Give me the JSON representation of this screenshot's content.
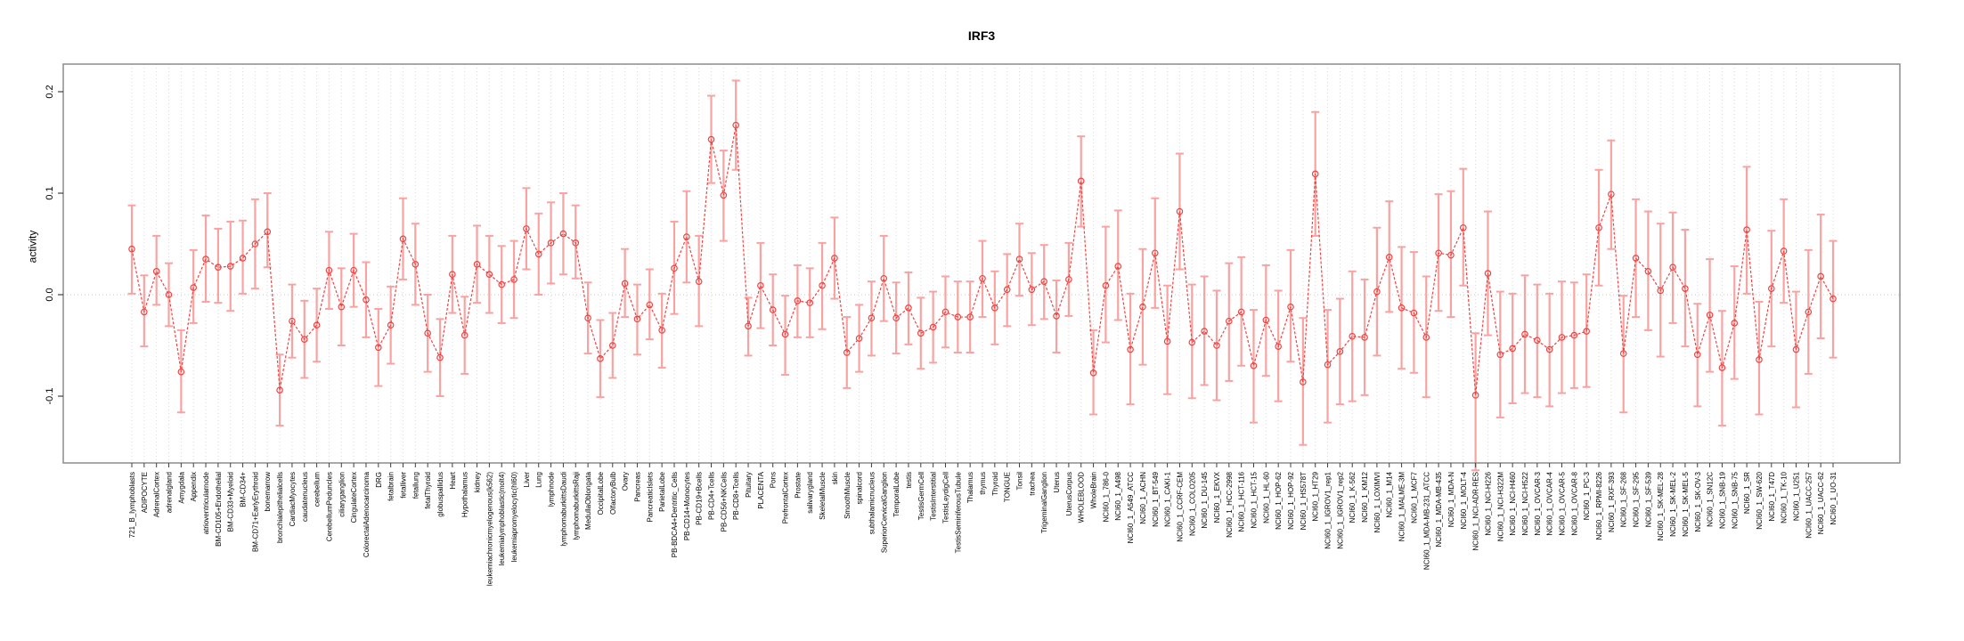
{
  "title": "IRF3",
  "chart_data": {
    "type": "line",
    "title": "IRF3",
    "xlabel": "",
    "ylabel": "activity",
    "ylim": [
      -0.166,
      0.227
    ],
    "yticks": [
      -0.1,
      0.0,
      0.1,
      0.2
    ],
    "ytick_labels": [
      "-0.1",
      "0.0",
      "0.1",
      "0.2"
    ],
    "grid": "vertical dotted per category, dotted zero line",
    "legend_position": "none",
    "point_style": "open-circle with error bars",
    "colors": {
      "point_line": "#f04341",
      "error_bar": "#f8a3a1",
      "grid_line": "#dadada",
      "zero_line": "#c8c8c8",
      "box_border": "#8c8c8c",
      "tick": "#404040",
      "text": "#000000",
      "background": "#ffffff"
    },
    "categories": [
      "721_B_lymphoblasts",
      "ADIPOCYTE",
      "AdrenalCortex",
      "adrenalgland",
      "Amygdala",
      "Appendix",
      "atrioventricularnode",
      "BM-CD105+Endothelial",
      "BM-CD33+Myeloid",
      "BM-CD34+",
      "BM-CD71+EarlyErythroid",
      "bonemarrow",
      "bronchialepithelialcells",
      "CardiacMyocytes",
      "caudatenucleus",
      "cerebellum",
      "CerebellumPeduncles",
      "ciliaryganglion",
      "CingulateCortex",
      "ColorectalAdenocarcinoma",
      "DRG",
      "fetalbrain",
      "fetalliver",
      "fetallung",
      "fetalThyroid",
      "globuspallidus",
      "Heart",
      "Hypothalamus",
      "kidney",
      "leukemiachronicmyelogenous(k562)",
      "leukemialymphoblastic(molt4)",
      "leukemiapromyelocytic(hl60)",
      "Liver",
      "Lung",
      "lymphnode",
      "lymphomaburkittsDaudi",
      "lymphomaburkittsRaji",
      "MedullaOblongata",
      "OccipitalLobe",
      "OlfactoryBulb",
      "Ovary",
      "Pancreas",
      "PancreaticIslets",
      "ParietalLobe",
      "PB-BDCA4+Dentritic_Cells",
      "PB-CD14+Monocytes",
      "PB-CD19+Bcells",
      "PB-CD4+Tcells",
      "PB-CD56+NKCells",
      "PB-CD8+Tcells",
      "Pituitary",
      "PLACENTA",
      "Pons",
      "PrefrontalCortex",
      "Prostate",
      "salivarygland",
      "SkeletalMuscle",
      "skin",
      "SmoothMuscle",
      "spinalcord",
      "subthalamicnucleus",
      "SuperiorCervicalGanglion",
      "TemporalLobe",
      "testis",
      "TestisGermCell",
      "TestisInterstitial",
      "TestisLeydigCell",
      "TestisSeminiferousTubule",
      "Thalamus",
      "thymus",
      "Thyroid",
      "TONGUE",
      "Tonsil",
      "trachea",
      "TrigeminalGanglion",
      "Uterus",
      "UterusCorpus",
      "WHOLEBLOOD",
      "WholeBrain",
      "NCI60_1_786-0",
      "NCI60_1_A498",
      "NCI60_1_A549_ATCC",
      "NCI60_1_ACHN",
      "NCI60_1_BT-549",
      "NCI60_1_CAKI-1",
      "NCI60_1_CCRF-CEM",
      "NCI60_1_COLO205",
      "NCI60_1_DU-145",
      "NCI60_1_EKVX",
      "NCI60_1_HCC-2998",
      "NCI60_1_HCT-116",
      "NCI60_1_HCT-15",
      "NCI60_1_HL-60",
      "NCI60_1_HOP-62",
      "NCI60_1_HOP-92",
      "NCI60_1_HS578T",
      "NCI60_1_HT29",
      "NCI60_1_IGROV1_rep1",
      "NCI60_1_IGROV1_rep2",
      "NCI60_1_K-562",
      "NCI60_1_KM12",
      "NCI60_1_LOXIMVI",
      "NCI60_1_M14",
      "NCI60_1_MALME-3M",
      "NCI60_1_MCF7",
      "NCI60_1_MDA-MB-231_ATCC",
      "NCI60_1_MDA-MB-435",
      "NCI60_1_MDA-N",
      "NCI60_1_MOLT-4",
      "NCI60_1_NCI-ADR-RES",
      "NCI60_1_NCI-H226",
      "NCI60_1_NCI-H322M",
      "NCI60_1_NCI-H460",
      "NCI60_1_NCI-H522",
      "NCI60_1_OVCAR-3",
      "NCI60_1_OVCAR-4",
      "NCI60_1_OVCAR-5",
      "NCI60_1_OVCAR-8",
      "NCI60_1_PC-3",
      "NCI60_1_RPMI-8226",
      "NCI60_1_RXF-393",
      "NCI60_1_SF-268",
      "NCI60_1_SF-295",
      "NCI60_1_SF-539",
      "NCI60_1_SK-MEL-28",
      "NCI60_1_SK-MEL-2",
      "NCI60_1_SK-MEL-5",
      "NCI60_1_SK-OV-3",
      "NCI60_1_SN12C",
      "NCI60_1_SNB-19",
      "NCI60_1_SNB-75",
      "NCI60_1_SR",
      "NCI60_1_SW-620",
      "NCI60_1_T47D",
      "NCI60_1_TK-10",
      "NCI60_1_U251",
      "NCI60_1_UACC-257",
      "NCI60_1_UACC-62",
      "NCI60_1_UO-31"
    ],
    "values": [
      0.045,
      -0.017,
      0.023,
      0.0,
      -0.076,
      0.007,
      0.035,
      0.027,
      0.028,
      0.036,
      0.05,
      0.062,
      -0.094,
      -0.026,
      -0.044,
      -0.03,
      0.024,
      -0.012,
      0.024,
      -0.005,
      -0.052,
      -0.03,
      0.055,
      0.03,
      -0.038,
      -0.062,
      0.02,
      -0.04,
      0.03,
      0.02,
      0.01,
      0.015,
      0.065,
      0.04,
      0.051,
      0.06,
      0.051,
      -0.023,
      -0.063,
      -0.05,
      0.011,
      -0.024,
      -0.01,
      -0.035,
      0.026,
      0.057,
      0.013,
      0.153,
      0.098,
      0.167,
      -0.031,
      0.009,
      -0.015,
      -0.039,
      -0.006,
      -0.008,
      0.009,
      0.036,
      -0.057,
      -0.043,
      -0.023,
      0.016,
      -0.023,
      -0.013,
      -0.038,
      -0.032,
      -0.017,
      -0.022,
      -0.022,
      0.016,
      -0.013,
      0.005,
      0.035,
      0.005,
      0.013,
      -0.021,
      0.015,
      0.112,
      -0.077,
      0.009,
      0.028,
      -0.054,
      -0.012,
      0.041,
      -0.046,
      0.082,
      -0.047,
      -0.036,
      -0.05,
      -0.026,
      -0.017,
      -0.07,
      -0.025,
      -0.051,
      -0.012,
      -0.086,
      0.119,
      -0.069,
      -0.056,
      -0.041,
      -0.042,
      0.003,
      0.037,
      -0.013,
      -0.018,
      -0.042,
      0.041,
      0.039,
      0.066,
      -0.099,
      0.021,
      -0.059,
      -0.053,
      -0.039,
      -0.045,
      -0.054,
      -0.042,
      -0.04,
      -0.036,
      0.066,
      0.099,
      -0.058,
      0.036,
      0.023,
      0.004,
      0.027,
      0.006,
      -0.059,
      -0.02,
      -0.072,
      -0.028,
      0.064,
      -0.064,
      0.006,
      0.043,
      -0.054,
      -0.017,
      0.018,
      -0.004
    ],
    "err_lo": [
      0.001,
      -0.051,
      -0.01,
      -0.031,
      -0.116,
      -0.028,
      -0.007,
      -0.008,
      -0.016,
      0.001,
      0.006,
      0.027,
      -0.129,
      -0.062,
      -0.082,
      -0.066,
      -0.014,
      -0.05,
      -0.012,
      -0.042,
      -0.09,
      -0.068,
      0.015,
      -0.01,
      -0.076,
      -0.1,
      -0.018,
      -0.078,
      -0.008,
      -0.018,
      -0.028,
      -0.023,
      0.025,
      0.0,
      0.011,
      0.02,
      0.016,
      -0.058,
      -0.101,
      -0.082,
      -0.022,
      -0.059,
      -0.044,
      -0.072,
      -0.019,
      0.012,
      -0.031,
      0.11,
      0.053,
      0.123,
      -0.06,
      -0.033,
      -0.05,
      -0.079,
      -0.042,
      -0.042,
      -0.034,
      -0.004,
      -0.092,
      -0.076,
      -0.06,
      -0.026,
      -0.058,
      -0.049,
      -0.073,
      -0.067,
      -0.052,
      -0.057,
      -0.057,
      -0.022,
      -0.049,
      -0.031,
      -0.001,
      -0.03,
      -0.024,
      -0.057,
      -0.021,
      0.067,
      -0.118,
      -0.047,
      -0.025,
      -0.108,
      -0.069,
      -0.013,
      -0.098,
      0.025,
      -0.102,
      -0.089,
      -0.104,
      -0.085,
      -0.07,
      -0.126,
      -0.08,
      -0.105,
      -0.066,
      -0.148,
      0.058,
      -0.126,
      -0.108,
      -0.105,
      -0.099,
      -0.06,
      -0.017,
      -0.073,
      -0.077,
      -0.101,
      -0.016,
      -0.022,
      0.009,
      -0.173,
      -0.04,
      -0.121,
      -0.107,
      -0.097,
      -0.101,
      -0.11,
      -0.097,
      -0.092,
      -0.091,
      0.009,
      0.045,
      -0.116,
      -0.022,
      -0.035,
      -0.061,
      -0.028,
      -0.051,
      -0.11,
      -0.076,
      -0.129,
      -0.083,
      0.001,
      -0.118,
      -0.051,
      -0.008,
      -0.111,
      -0.078,
      -0.043,
      -0.062
    ],
    "err_hi": [
      0.088,
      0.019,
      0.058,
      0.031,
      -0.035,
      0.044,
      0.078,
      0.065,
      0.072,
      0.073,
      0.094,
      0.1,
      -0.059,
      0.01,
      -0.006,
      0.006,
      0.062,
      0.026,
      0.06,
      0.032,
      -0.014,
      0.008,
      0.095,
      0.07,
      0.0,
      -0.024,
      0.058,
      -0.002,
      0.068,
      0.058,
      0.048,
      0.053,
      0.105,
      0.08,
      0.091,
      0.1,
      0.088,
      0.012,
      -0.025,
      -0.018,
      0.045,
      0.01,
      0.025,
      0.001,
      0.072,
      0.102,
      0.058,
      0.196,
      0.142,
      0.211,
      -0.003,
      0.051,
      0.02,
      -0.001,
      0.029,
      0.026,
      0.051,
      0.076,
      -0.022,
      -0.01,
      0.013,
      0.058,
      0.012,
      0.022,
      -0.003,
      0.003,
      0.018,
      0.013,
      0.013,
      0.053,
      0.023,
      0.04,
      0.07,
      0.041,
      0.049,
      0.014,
      0.051,
      0.156,
      -0.035,
      0.067,
      0.083,
      0.001,
      0.045,
      0.095,
      0.009,
      0.139,
      0.01,
      0.018,
      0.004,
      0.031,
      0.037,
      -0.015,
      0.029,
      0.004,
      0.044,
      -0.023,
      0.18,
      -0.015,
      -0.004,
      0.023,
      0.015,
      0.066,
      0.092,
      0.047,
      0.042,
      0.018,
      0.099,
      0.102,
      0.124,
      -0.038,
      0.082,
      0.003,
      0.001,
      0.019,
      0.01,
      0.001,
      0.013,
      0.012,
      0.02,
      0.123,
      0.152,
      -0.001,
      0.094,
      0.082,
      0.07,
      0.081,
      0.064,
      -0.009,
      0.035,
      -0.016,
      0.028,
      0.126,
      -0.007,
      0.063,
      0.094,
      0.003,
      0.044,
      0.079,
      0.053
    ]
  }
}
